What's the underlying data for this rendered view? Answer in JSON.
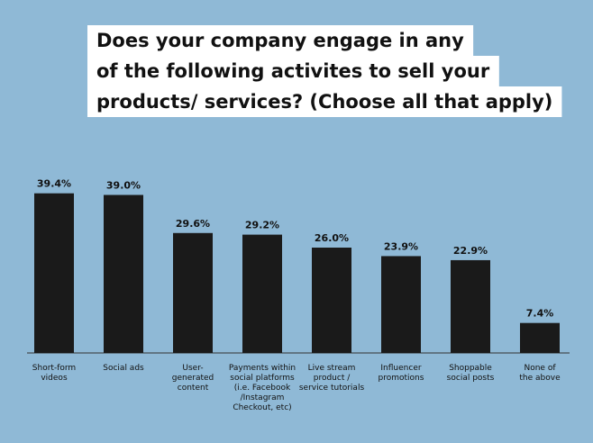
{
  "chart_data": {
    "type": "bar",
    "title": [
      "Does your company engage in any",
      "of the following activites to sell your",
      "products/ services? (Choose all that apply)"
    ],
    "categories": [
      "Short-form\nvideos",
      "Social ads",
      "User-\ngenerated\ncontent",
      "Payments within\nsocial platforms\n(i.e. Facebook\n/Instagram\nCheckout, etc)",
      "Live stream\nproduct /\nservice tutorials",
      "Influencer\npromotions",
      "Shoppable\nsocial posts",
      "None of\nthe above"
    ],
    "values": [
      39.4,
      39.0,
      29.6,
      29.2,
      26.0,
      23.9,
      22.9,
      7.4
    ],
    "value_labels": [
      "39.4%",
      "39.0%",
      "29.6%",
      "29.2%",
      "26.0%",
      "23.9%",
      "22.9%",
      "7.4%"
    ],
    "color": "#1a1a1a",
    "background": "#8fb9d6"
  }
}
